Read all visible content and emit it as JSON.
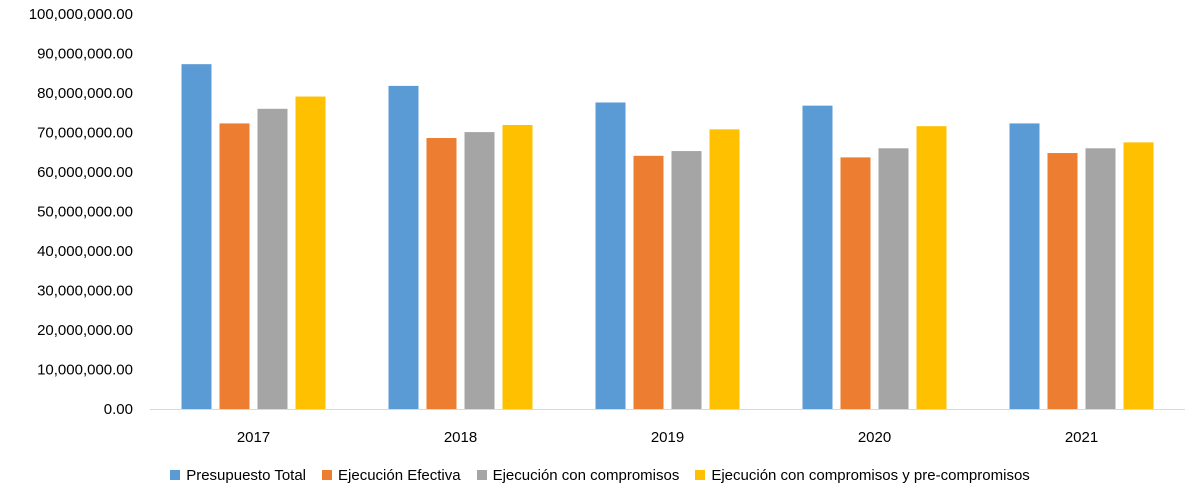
{
  "chart_data": {
    "type": "bar",
    "categories": [
      "2017",
      "2018",
      "2019",
      "2020",
      "2021"
    ],
    "series": [
      {
        "name": "Presupuesto Total",
        "color": "#5B9BD5",
        "values": [
          87300000,
          81800000,
          77600000,
          76800000,
          72300000
        ]
      },
      {
        "name": "Ejecución Efectiva",
        "color": "#ED7D31",
        "values": [
          72300000,
          68600000,
          64100000,
          63700000,
          64800000
        ]
      },
      {
        "name": "Ejecución con compromisos",
        "color": "#A5A5A5",
        "values": [
          76000000,
          70100000,
          65300000,
          66000000,
          66000000
        ]
      },
      {
        "name": "Ejecución con compromisos y pre-compromisos",
        "color": "#FFC000",
        "values": [
          79100000,
          71900000,
          70800000,
          71600000,
          67500000
        ]
      }
    ],
    "ylim": [
      0,
      100000000
    ],
    "yticks": [
      "0.00",
      "10,000,000.00",
      "20,000,000.00",
      "30,000,000.00",
      "40,000,000.00",
      "50,000,000.00",
      "60,000,000.00",
      "70,000,000.00",
      "80,000,000.00",
      "90,000,000.00",
      "100,000,000.00"
    ],
    "legend_position": "bottom",
    "grid": false,
    "title": "",
    "xlabel": "",
    "ylabel": ""
  }
}
